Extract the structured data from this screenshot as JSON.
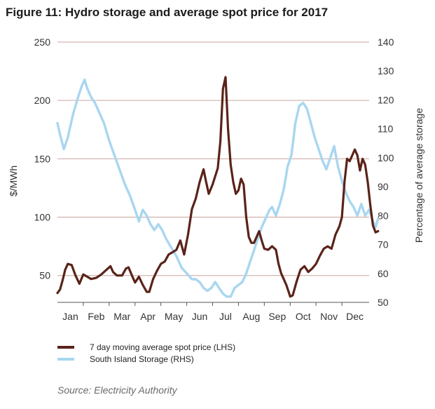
{
  "title": "Figure 11: Hydro storage and average spot price for 2017",
  "source": "Source: Electricity Authority",
  "colors": {
    "price_line": "#5a2319",
    "storage_line": "#a9d6f0",
    "gridline": "#c9a6a0",
    "text": "#333333"
  },
  "chart_data": {
    "type": "line",
    "x_categories": [
      "Jan",
      "Feb",
      "Mar",
      "Apr",
      "May",
      "Jun",
      "Jul",
      "Aug",
      "Sep",
      "Oct",
      "Nov",
      "Dec"
    ],
    "x_range": [
      0,
      12
    ],
    "left_axis": {
      "label": "$/MWh",
      "ylim": [
        27,
        250
      ],
      "ticks": [
        "50",
        "100",
        "150",
        "200",
        "250"
      ],
      "tick_values": [
        50,
        100,
        150,
        200,
        250
      ]
    },
    "right_axis": {
      "label": "Percentage of average storage",
      "ylim": [
        50,
        140
      ],
      "ticks": [
        "50",
        "60",
        "70",
        "80",
        "90",
        "100",
        "110",
        "120",
        "130",
        "140"
      ],
      "tick_values": [
        50,
        60,
        70,
        80,
        90,
        100,
        110,
        120,
        130,
        140
      ]
    },
    "gridlines": "horizontal",
    "legend_position": "bottom",
    "series": [
      {
        "name": "7 day moving average spot price (LHS)",
        "axis": "left",
        "color": "#5a2319",
        "points": [
          [
            0.0,
            35
          ],
          [
            0.1,
            38
          ],
          [
            0.2,
            46
          ],
          [
            0.3,
            55
          ],
          [
            0.4,
            60
          ],
          [
            0.55,
            59
          ],
          [
            0.7,
            50
          ],
          [
            0.85,
            43
          ],
          [
            1.0,
            51
          ],
          [
            1.15,
            49
          ],
          [
            1.3,
            47
          ],
          [
            1.5,
            48
          ],
          [
            1.7,
            51
          ],
          [
            1.9,
            55
          ],
          [
            2.05,
            58
          ],
          [
            2.15,
            53
          ],
          [
            2.3,
            50
          ],
          [
            2.5,
            50
          ],
          [
            2.65,
            56
          ],
          [
            2.75,
            57
          ],
          [
            2.9,
            49
          ],
          [
            3.0,
            44
          ],
          [
            3.15,
            49
          ],
          [
            3.3,
            42
          ],
          [
            3.45,
            36
          ],
          [
            3.55,
            36
          ],
          [
            3.7,
            47
          ],
          [
            3.85,
            54
          ],
          [
            4.0,
            60
          ],
          [
            4.15,
            62
          ],
          [
            4.3,
            68
          ],
          [
            4.45,
            70
          ],
          [
            4.6,
            72
          ],
          [
            4.75,
            80
          ],
          [
            4.9,
            68
          ],
          [
            5.05,
            85
          ],
          [
            5.2,
            107
          ],
          [
            5.35,
            116
          ],
          [
            5.5,
            130
          ],
          [
            5.65,
            141
          ],
          [
            5.75,
            130
          ],
          [
            5.85,
            120
          ],
          [
            6.0,
            128
          ],
          [
            6.1,
            135
          ],
          [
            6.2,
            142
          ],
          [
            6.3,
            165
          ],
          [
            6.4,
            210
          ],
          [
            6.5,
            220
          ],
          [
            6.6,
            175
          ],
          [
            6.7,
            145
          ],
          [
            6.8,
            130
          ],
          [
            6.9,
            120
          ],
          [
            7.0,
            123
          ],
          [
            7.1,
            133
          ],
          [
            7.2,
            128
          ],
          [
            7.3,
            100
          ],
          [
            7.4,
            83
          ],
          [
            7.5,
            78
          ],
          [
            7.6,
            78
          ],
          [
            7.7,
            83
          ],
          [
            7.8,
            88
          ],
          [
            7.9,
            80
          ],
          [
            8.0,
            73
          ],
          [
            8.15,
            72
          ],
          [
            8.3,
            75
          ],
          [
            8.45,
            72
          ],
          [
            8.55,
            60
          ],
          [
            8.65,
            52
          ],
          [
            8.75,
            47
          ],
          [
            8.85,
            42
          ],
          [
            9.0,
            32
          ],
          [
            9.1,
            33
          ],
          [
            9.25,
            45
          ],
          [
            9.4,
            55
          ],
          [
            9.55,
            58
          ],
          [
            9.7,
            53
          ],
          [
            9.85,
            56
          ],
          [
            10.0,
            60
          ],
          [
            10.15,
            67
          ],
          [
            10.3,
            73
          ],
          [
            10.45,
            75
          ],
          [
            10.6,
            73
          ],
          [
            10.75,
            85
          ],
          [
            10.9,
            92
          ],
          [
            11.0,
            100
          ],
          [
            11.1,
            130
          ],
          [
            11.2,
            150
          ],
          [
            11.3,
            148
          ],
          [
            11.4,
            153
          ],
          [
            11.5,
            158
          ],
          [
            11.6,
            153
          ],
          [
            11.7,
            140
          ],
          [
            11.8,
            150
          ],
          [
            11.9,
            145
          ],
          [
            12.0,
            130
          ],
          [
            12.1,
            110
          ],
          [
            12.2,
            93
          ],
          [
            12.3,
            87
          ],
          [
            12.4,
            88
          ]
        ]
      },
      {
        "name": "South Island Storage (RHS)",
        "axis": "right",
        "color": "#a9d6f0",
        "points": [
          [
            0.0,
            112
          ],
          [
            0.1,
            108
          ],
          [
            0.25,
            103
          ],
          [
            0.4,
            107
          ],
          [
            0.6,
            115
          ],
          [
            0.8,
            121
          ],
          [
            0.95,
            125
          ],
          [
            1.05,
            127
          ],
          [
            1.15,
            124
          ],
          [
            1.3,
            121
          ],
          [
            1.45,
            119
          ],
          [
            1.6,
            116
          ],
          [
            1.8,
            112
          ],
          [
            2.0,
            106
          ],
          [
            2.2,
            101
          ],
          [
            2.4,
            96
          ],
          [
            2.6,
            91
          ],
          [
            2.8,
            87
          ],
          [
            3.0,
            82
          ],
          [
            3.15,
            78
          ],
          [
            3.3,
            82
          ],
          [
            3.45,
            80
          ],
          [
            3.6,
            77
          ],
          [
            3.75,
            75
          ],
          [
            3.9,
            77
          ],
          [
            4.05,
            75
          ],
          [
            4.2,
            72
          ],
          [
            4.4,
            69
          ],
          [
            4.6,
            66
          ],
          [
            4.8,
            62
          ],
          [
            5.0,
            60
          ],
          [
            5.2,
            58
          ],
          [
            5.35,
            58
          ],
          [
            5.5,
            57
          ],
          [
            5.65,
            55
          ],
          [
            5.8,
            54
          ],
          [
            5.95,
            55
          ],
          [
            6.1,
            57
          ],
          [
            6.25,
            55
          ],
          [
            6.4,
            53
          ],
          [
            6.55,
            52
          ],
          [
            6.7,
            52
          ],
          [
            6.85,
            55
          ],
          [
            7.0,
            56
          ],
          [
            7.15,
            57
          ],
          [
            7.3,
            60
          ],
          [
            7.45,
            64
          ],
          [
            7.6,
            68
          ],
          [
            7.75,
            72
          ],
          [
            7.9,
            76
          ],
          [
            8.05,
            79
          ],
          [
            8.2,
            82
          ],
          [
            8.3,
            83
          ],
          [
            8.45,
            80
          ],
          [
            8.6,
            84
          ],
          [
            8.75,
            89
          ],
          [
            8.9,
            97
          ],
          [
            9.05,
            101
          ],
          [
            9.2,
            112
          ],
          [
            9.35,
            118
          ],
          [
            9.5,
            119
          ],
          [
            9.65,
            117
          ],
          [
            9.8,
            112
          ],
          [
            9.95,
            107
          ],
          [
            10.1,
            103
          ],
          [
            10.25,
            99
          ],
          [
            10.4,
            96
          ],
          [
            10.55,
            100
          ],
          [
            10.7,
            104
          ],
          [
            10.85,
            97
          ],
          [
            11.0,
            92
          ],
          [
            11.15,
            88
          ],
          [
            11.3,
            85
          ],
          [
            11.45,
            83
          ],
          [
            11.6,
            80
          ],
          [
            11.75,
            84
          ],
          [
            11.9,
            80
          ],
          [
            12.05,
            82
          ],
          [
            12.2,
            78
          ],
          [
            12.3,
            76
          ],
          [
            12.4,
            79
          ]
        ]
      }
    ]
  }
}
